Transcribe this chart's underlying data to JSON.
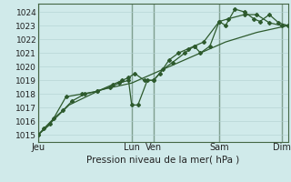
{
  "bg_color": "#d0eaea",
  "grid_color": "#b0d0d0",
  "line_color": "#2d5a2d",
  "marker_color": "#2d5a2d",
  "ylabel_fontsize": 6.5,
  "xlabel_label": "Pression niveau de la mer( hPa )",
  "xlabel_fontsize": 7.5,
  "ylim": [
    1014.5,
    1024.6
  ],
  "yticks": [
    1015,
    1016,
    1017,
    1018,
    1019,
    1020,
    1021,
    1022,
    1023,
    1024
  ],
  "xlim": [
    0,
    8.0
  ],
  "xtick_labels_full": [
    "Jeu",
    "Lun",
    "Ven",
    "Sam",
    "Dim"
  ],
  "xtick_positions_full": [
    0.0,
    3.0,
    3.7,
    5.8,
    7.8
  ],
  "vline_positions": [
    0.0,
    3.0,
    3.7,
    5.8,
    7.8
  ],
  "line1": [
    [
      0.0,
      1015.0
    ],
    [
      0.2,
      1015.5
    ],
    [
      0.5,
      1016.2
    ],
    [
      0.8,
      1016.8
    ],
    [
      1.1,
      1017.5
    ],
    [
      1.5,
      1018.0
    ],
    [
      1.9,
      1018.2
    ],
    [
      2.3,
      1018.5
    ],
    [
      2.6,
      1018.8
    ],
    [
      2.9,
      1019.0
    ],
    [
      3.0,
      1017.2
    ],
    [
      3.2,
      1017.2
    ],
    [
      3.5,
      1019.0
    ],
    [
      3.7,
      1019.0
    ],
    [
      3.9,
      1019.5
    ],
    [
      4.2,
      1020.5
    ],
    [
      4.5,
      1021.0
    ],
    [
      4.8,
      1021.3
    ],
    [
      5.0,
      1021.5
    ],
    [
      5.2,
      1021.0
    ],
    [
      5.5,
      1021.5
    ],
    [
      5.8,
      1023.3
    ],
    [
      6.0,
      1023.0
    ],
    [
      6.3,
      1024.2
    ],
    [
      6.6,
      1024.0
    ],
    [
      6.9,
      1023.5
    ],
    [
      7.1,
      1023.3
    ],
    [
      7.4,
      1023.8
    ],
    [
      7.7,
      1023.2
    ],
    [
      8.0,
      1023.0
    ]
  ],
  "line2": [
    [
      0.0,
      1015.0
    ],
    [
      0.4,
      1015.8
    ],
    [
      0.9,
      1017.8
    ],
    [
      1.4,
      1018.0
    ],
    [
      1.9,
      1018.2
    ],
    [
      2.4,
      1018.7
    ],
    [
      2.7,
      1019.0
    ],
    [
      2.9,
      1019.2
    ],
    [
      3.1,
      1019.5
    ],
    [
      3.4,
      1019.0
    ],
    [
      3.7,
      1019.0
    ],
    [
      4.0,
      1019.8
    ],
    [
      4.3,
      1020.3
    ],
    [
      4.7,
      1021.0
    ],
    [
      5.0,
      1021.5
    ],
    [
      5.3,
      1021.8
    ],
    [
      5.8,
      1023.3
    ],
    [
      6.1,
      1023.5
    ],
    [
      6.6,
      1023.8
    ],
    [
      7.0,
      1023.8
    ],
    [
      7.4,
      1023.2
    ],
    [
      7.8,
      1023.0
    ],
    [
      8.0,
      1023.0
    ]
  ],
  "line3": [
    [
      0.0,
      1015.0
    ],
    [
      1.0,
      1017.2
    ],
    [
      2.0,
      1018.3
    ],
    [
      3.0,
      1018.8
    ],
    [
      4.0,
      1019.8
    ],
    [
      5.0,
      1020.8
    ],
    [
      6.0,
      1021.8
    ],
    [
      7.0,
      1022.5
    ],
    [
      8.0,
      1023.0
    ]
  ]
}
